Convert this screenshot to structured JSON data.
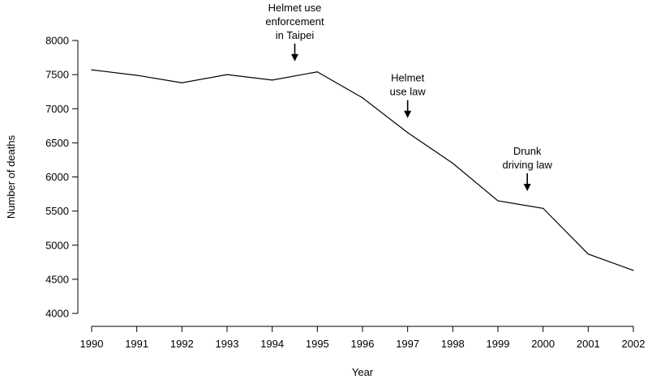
{
  "chart_data": {
    "type": "line",
    "title": "",
    "xlabel": "Year",
    "ylabel": "Number of deaths",
    "x": [
      1990,
      1991,
      1992,
      1993,
      1994,
      1995,
      1996,
      1997,
      1998,
      1999,
      2000,
      2001,
      2002
    ],
    "series": [
      {
        "values": [
          7570,
          7490,
          7380,
          7500,
          7420,
          7540,
          7160,
          6650,
          6200,
          5650,
          5540,
          4870,
          4630
        ]
      }
    ],
    "xlim": [
      1990,
      2002
    ],
    "ylim": [
      4000,
      8000
    ],
    "yticks": [
      4000,
      4500,
      5000,
      5500,
      6000,
      6500,
      7000,
      7500,
      8000
    ],
    "xticks": [
      1990,
      1991,
      1992,
      1993,
      1994,
      1995,
      1996,
      1997,
      1998,
      1999,
      2000,
      2001,
      2002
    ],
    "grid": false,
    "legend": "none",
    "line_color": "#000000",
    "annotations": [
      {
        "x": 1994.5,
        "lines": [
          "Helmet use",
          "enforcement",
          "in Taipei"
        ]
      },
      {
        "x": 1997,
        "lines": [
          "Helmet",
          "use law"
        ]
      },
      {
        "x": 1999.65,
        "lines": [
          "Drunk",
          "driving law"
        ]
      }
    ]
  }
}
